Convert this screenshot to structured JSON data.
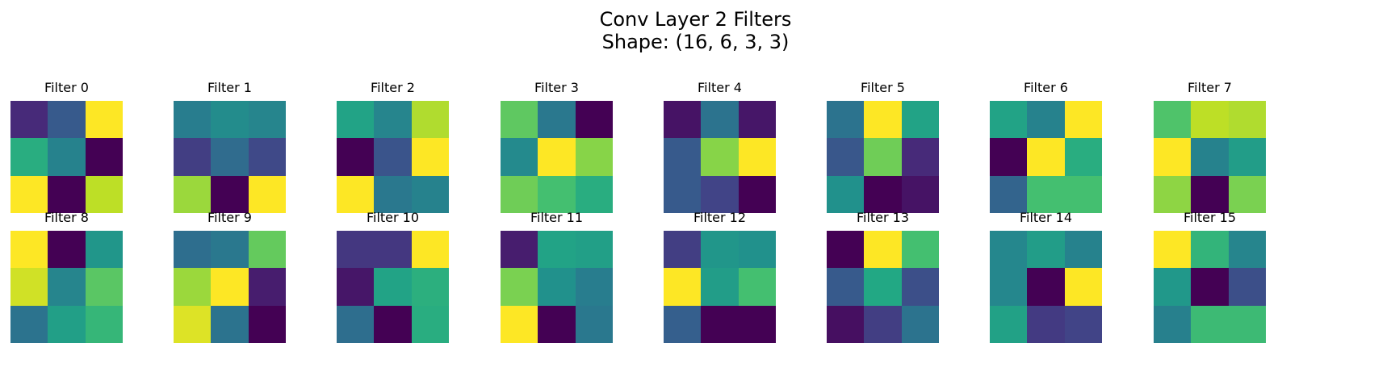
{
  "title_lines": [
    "Conv Layer 2 Filters",
    "Shape: (16, 6, 3, 3)"
  ],
  "colormap": "viridis",
  "chart_data": {
    "type": "heatmap",
    "title": "Conv Layer 2 Filters\nShape: (16, 6, 3, 3)",
    "layout": {
      "rows": 2,
      "cols": 8
    },
    "grid": false,
    "colormap": "viridis",
    "value_scale": "normalized per filter (0 = min, 1 = max)",
    "panels": [
      {
        "title": "Filter 0",
        "values": [
          [
            0.12,
            0.28,
            1.0
          ],
          [
            0.62,
            0.44,
            0.0
          ],
          [
            1.0,
            0.0,
            0.9
          ]
        ]
      },
      {
        "title": "Filter 1",
        "values": [
          [
            0.42,
            0.48,
            0.45
          ],
          [
            0.18,
            0.35,
            0.22
          ],
          [
            0.85,
            0.0,
            1.0
          ]
        ]
      },
      {
        "title": "Filter 2",
        "values": [
          [
            0.58,
            0.45,
            0.88
          ],
          [
            0.0,
            0.26,
            1.0
          ],
          [
            1.0,
            0.4,
            0.44
          ]
        ]
      },
      {
        "title": "Filter 3",
        "values": [
          [
            0.75,
            0.4,
            0.0
          ],
          [
            0.47,
            1.0,
            0.82
          ],
          [
            0.78,
            0.7,
            0.62
          ]
        ]
      },
      {
        "title": "Filter 4",
        "values": [
          [
            0.05,
            0.38,
            0.06
          ],
          [
            0.28,
            0.82,
            1.0
          ],
          [
            0.28,
            0.2,
            0.0
          ]
        ]
      },
      {
        "title": "Filter 5",
        "values": [
          [
            0.38,
            1.0,
            0.58
          ],
          [
            0.27,
            0.78,
            0.12
          ],
          [
            0.5,
            0.0,
            0.05
          ]
        ]
      },
      {
        "title": "Filter 6",
        "values": [
          [
            0.58,
            0.44,
            1.0
          ],
          [
            0.0,
            1.0,
            0.62
          ],
          [
            0.32,
            0.7,
            0.7
          ]
        ]
      },
      {
        "title": "Filter 7",
        "values": [
          [
            0.72,
            0.9,
            0.88
          ],
          [
            1.0,
            0.44,
            0.55
          ],
          [
            0.83,
            0.0,
            0.8
          ]
        ]
      },
      {
        "title": "Filter 8",
        "values": [
          [
            1.0,
            0.0,
            0.52
          ],
          [
            0.93,
            0.45,
            0.74
          ],
          [
            0.38,
            0.56,
            0.66
          ]
        ]
      },
      {
        "title": "Filter 9",
        "values": [
          [
            0.36,
            0.4,
            0.76
          ],
          [
            0.85,
            1.0,
            0.08
          ],
          [
            0.95,
            0.38,
            0.0
          ]
        ]
      },
      {
        "title": "Filter 10",
        "values": [
          [
            0.16,
            0.16,
            1.0
          ],
          [
            0.06,
            0.58,
            0.63
          ],
          [
            0.36,
            0.0,
            0.62
          ]
        ]
      },
      {
        "title": "Filter 11",
        "values": [
          [
            0.08,
            0.58,
            0.56
          ],
          [
            0.8,
            0.5,
            0.42
          ],
          [
            1.0,
            0.0,
            0.4
          ]
        ]
      },
      {
        "title": "Filter 12",
        "values": [
          [
            0.18,
            0.52,
            0.5
          ],
          [
            1.0,
            0.55,
            0.7
          ],
          [
            0.3,
            0.0,
            0.0
          ]
        ]
      },
      {
        "title": "Filter 13",
        "values": [
          [
            0.0,
            1.0,
            0.7
          ],
          [
            0.28,
            0.6,
            0.24
          ],
          [
            0.04,
            0.18,
            0.38
          ]
        ]
      },
      {
        "title": "Filter 14",
        "values": [
          [
            0.46,
            0.55,
            0.44
          ],
          [
            0.46,
            0.0,
            1.0
          ],
          [
            0.57,
            0.17,
            0.2
          ]
        ]
      },
      {
        "title": "Filter 15",
        "values": [
          [
            1.0,
            0.65,
            0.45
          ],
          [
            0.53,
            0.0,
            0.24
          ],
          [
            0.43,
            0.68,
            0.68
          ]
        ]
      }
    ]
  }
}
